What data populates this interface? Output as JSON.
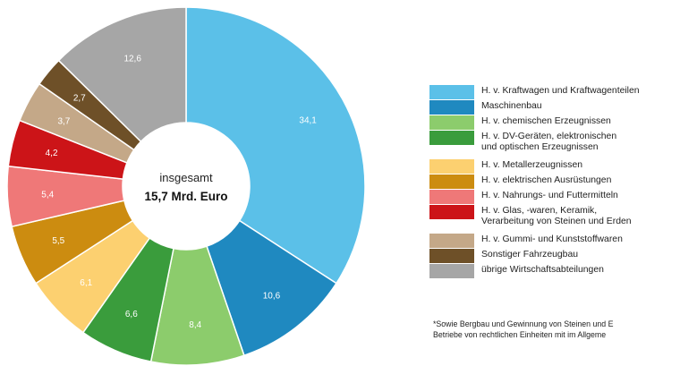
{
  "chart_data": {
    "type": "pie",
    "center_label": "insgesamt",
    "center_total": "15,7 Mrd. Euro",
    "slices": [
      {
        "label": "H. v. Kraftwagen und Kraftwagenteilen",
        "value": 34.1,
        "value_label": "34,1",
        "color": "#5bc0e8"
      },
      {
        "label": "Maschinenbau",
        "value": 10.6,
        "value_label": "10,6",
        "color": "#1f89c0"
      },
      {
        "label": "H. v. chemischen Erzeugnissen",
        "value": 8.4,
        "value_label": "8,4",
        "color": "#8ccc6c"
      },
      {
        "label": "H. v. DV-Geräten, elektronischen und optischen Erzeugnissen",
        "value": 6.6,
        "value_label": "6,6",
        "color": "#3a9c3c"
      },
      {
        "label": "H. v. Metallerzeugnissen",
        "value": 6.1,
        "value_label": "6,1",
        "color": "#fcd070"
      },
      {
        "label": "H. v. elektrischen Ausrüstungen",
        "value": 5.5,
        "value_label": "5,5",
        "color": "#cc8c10"
      },
      {
        "label": "H. v. Nahrungs- und Futtermitteln",
        "value": 5.4,
        "value_label": "5,4",
        "color": "#ef7878"
      },
      {
        "label": "H. v. Glas, -waren, Keramik, Verarbeitung von Steinen und Erden",
        "value": 4.2,
        "value_label": "4,2",
        "color": "#cc1418"
      },
      {
        "label": "H. v. Gummi- und Kunststoffwaren",
        "value": 3.7,
        "value_label": "3,7",
        "color": "#c4a888"
      },
      {
        "label": "Sonstiger Fahrzeugbau",
        "value": 2.7,
        "value_label": "2,7",
        "color": "#6e5028"
      },
      {
        "label": "übrige Wirtschaftsabteilungen",
        "value": 12.6,
        "value_label": "12,6",
        "color": "#a6a6a6"
      }
    ],
    "legend": [
      {
        "lines": [
          "H. v. Kraftwagen und Kraftwagenteilen"
        ],
        "color": "#5bc0e8"
      },
      {
        "lines": [
          "Maschinenbau"
        ],
        "color": "#1f89c0"
      },
      {
        "lines": [
          "H. v. chemischen Erzeugnissen"
        ],
        "color": "#8ccc6c"
      },
      {
        "lines": [
          "H. v. DV-Geräten, elektronischen",
          "und optischen Erzeugnissen"
        ],
        "color": "#3a9c3c"
      },
      {
        "lines": [
          "H. v. Metallerzeugnissen"
        ],
        "color": "#fcd070"
      },
      {
        "lines": [
          "H. v. elektrischen Ausrüstungen"
        ],
        "color": "#cc8c10"
      },
      {
        "lines": [
          "H. v. Nahrungs- und Futtermitteln"
        ],
        "color": "#ef7878"
      },
      {
        "lines": [
          "H. v. Glas, -waren, Keramik,",
          "Verarbeitung von Steinen und Erden"
        ],
        "color": "#cc1418"
      },
      {
        "lines": [
          "H. v. Gummi- und Kunststoffwaren"
        ],
        "color": "#c4a888"
      },
      {
        "lines": [
          "Sonstiger Fahrzeugbau"
        ],
        "color": "#6e5028"
      },
      {
        "lines": [
          "übrige Wirtschaftsabteilungen"
        ],
        "color": "#a6a6a6"
      }
    ],
    "legend_placement": "right"
  },
  "footnote": {
    "lines": [
      "*Sowie Bergbau und Gewinnung von Steinen und E",
      "Betriebe von rechtlichen Einheiten mit im Allgeme"
    ]
  }
}
